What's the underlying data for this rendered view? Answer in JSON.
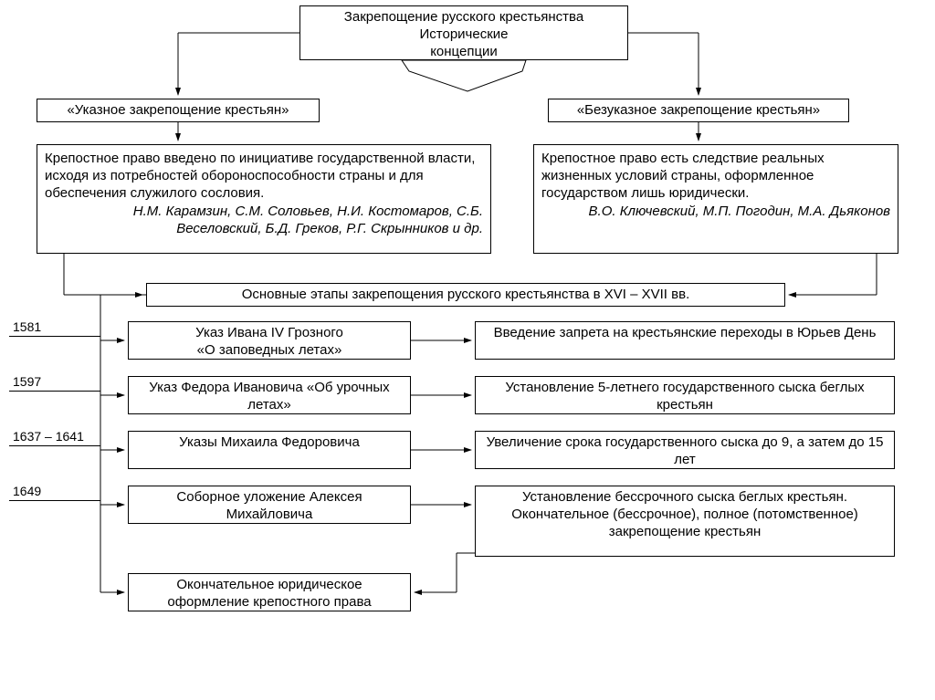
{
  "type": "flowchart",
  "background_color": "#ffffff",
  "text_color": "#000000",
  "border_color": "#000000",
  "font_family": "Arial",
  "base_fontsize": 15,
  "title_multiline": "Закрепощение русского крестьянства<br>Исторические<br>концепции",
  "concepts": {
    "left": {
      "label": "«Указное закрепощение крестьян»",
      "desc_line1": "Крепостное право введено по инициативе государственной власти, исходя из потребностей обороноспособности страны и для обеспечения служилого сословия.",
      "authors": "Н.М. Карамзин, С.М. Соловьев, Н.И. Костомаров, С.Б. Веселовский, Б.Д. Греков, Р.Г. Скрынников и др."
    },
    "right": {
      "label": "«Безуказное закрепощение крестьян»",
      "desc_line1": "Крепостное право есть следствие реальных жизненных условий страны, оформленное государством лишь юридически.",
      "authors": "В.О. Ключевский, М.П. Погодин, М.А. Дьяконов"
    }
  },
  "stages_title": "Основные этапы закрепощения русского крестьянства в XVI – XVII вв.",
  "timeline": [
    {
      "year": "1581",
      "decree": "Указ Ивана IV Грозного<br>«О заповедных летах»",
      "effect": "Введение запрета на крестьянские переходы в Юрьев День"
    },
    {
      "year": "1597",
      "decree": "Указ Федора Ивановича «Об урочных летах»",
      "effect": "Установление 5-летнего государственного сыска беглых крестьян"
    },
    {
      "year": "1637 – 1641",
      "decree": "Указы Михаила Федоровича",
      "effect": "Увеличение срока государственного сыска до 9, а затем до 15 лет"
    },
    {
      "year": "1649",
      "decree": "Соборное уложение Алексея Михайловича",
      "effect": "Установление бессрочного сыска беглых крестьян. Окончательное (бессрочное), полное (потомственное) закрепощение крестьян"
    }
  ],
  "final": "Окончательное юридическое оформление крепостного права"
}
